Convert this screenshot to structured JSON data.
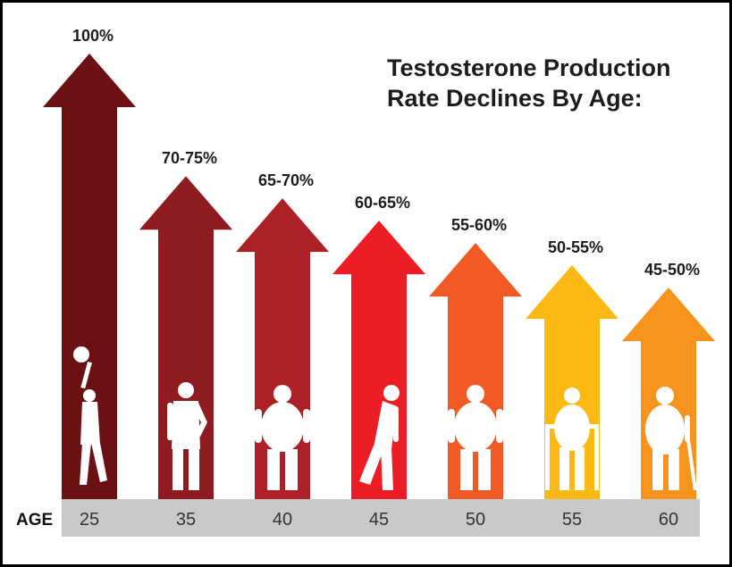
{
  "title": {
    "line1": "Testosterone Production",
    "line2": "Rate Declines By Age:"
  },
  "chart_data": {
    "type": "bar",
    "title": "Testosterone Production Rate Declines By Age:",
    "xlabel": "AGE",
    "categories": [
      "25",
      "35",
      "40",
      "45",
      "50",
      "55",
      "60"
    ],
    "labels": [
      "100%",
      "70-75%",
      "65-70%",
      "60-65%",
      "55-60%",
      "50-55%",
      "45-50%"
    ],
    "values": [
      100,
      72.5,
      67.5,
      62.5,
      57.5,
      52.5,
      47.5
    ],
    "ylim": [
      0,
      100
    ],
    "colors": [
      "#6b1114",
      "#8e1b1f",
      "#ac2026",
      "#ec1d24",
      "#f15a24",
      "#fdb913",
      "#f7941d"
    ],
    "figures": [
      "child-jumping-figure",
      "man-standing-figure",
      "man-overweight-figure",
      "man-bent-figure",
      "man-overweight-figure",
      "man-walker-figure",
      "man-cane-figure"
    ]
  }
}
